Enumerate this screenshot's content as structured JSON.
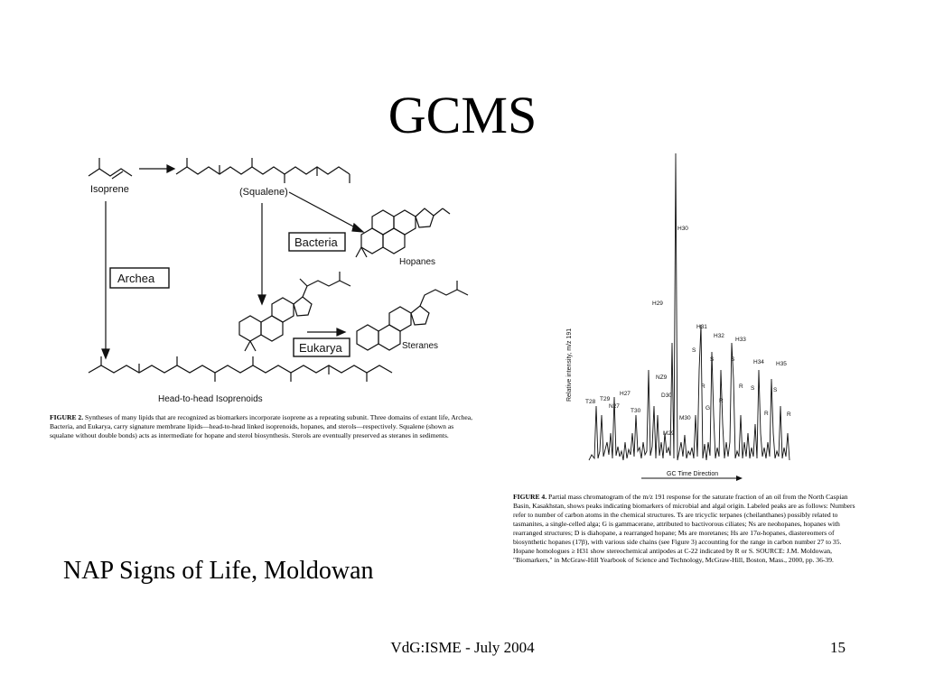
{
  "slide": {
    "title": "GCMS",
    "subtitle": "NAP Signs of Life, Moldowan",
    "footer_center": "VdG:ISME - July 2004",
    "page_number": "15"
  },
  "figure2": {
    "labels": {
      "isoprene": "Isoprene",
      "squalene": "(Squalene)",
      "bacteria": "Bacteria",
      "hopanes": "Hopanes",
      "archea": "Archea",
      "eukarya": "Eukarya",
      "steranes": "Steranes",
      "head_to_head": "Head-to-head Isoprenoids"
    },
    "caption_head": "FIGURE 2.",
    "caption": "Syntheses of many lipids that are recognized as biomarkers incorporate isoprene as a repeating subunit. Three domains of extant life, Archea, Bacteria, and Eukarya, carry signature membrane lipids—head-to-head linked isoprenoids, hopanes, and sterols—respectively. Squalene (shown as squalane without double bonds) acts as intermediate for hopane and sterol biosynthesis. Sterols are eventually preserved as steranes in sediments."
  },
  "figure4": {
    "y_axis_label": "Relative intensity, m/z 191",
    "x_axis_label": "GC Time Direction",
    "peak_labels": [
      "T28",
      "T29",
      "N27",
      "H27",
      "T30",
      "NZ9",
      "D30",
      "H29",
      "M29",
      "M30",
      "H30",
      "H31",
      "S",
      "R",
      "H32",
      "S",
      "R",
      "G",
      "H33",
      "S",
      "R",
      "H34",
      "S",
      "R",
      "H35",
      "S",
      "R"
    ],
    "caption_head": "FIGURE 4.",
    "caption": "Partial mass chromatogram of the m/z 191 response for the saturate fraction of an oil from the North Caspian Basin, Kasakhstan, shows peaks indicating biomarkers of microbial and algal origin. Labeled peaks are as follows: Numbers refer to number of carbon atoms in the chemical structures. Ts are tricyclic terpanes (cheilanthanes) possibly related to tasmanites, a single-celled alga; G is gammacerane, attributed to bactivorous ciliates; Ns are neohopanes, hopanes with rearranged structures; D is diahopane, a rearranged hopane; Ms are moretanes; Hs are 17α-hopanes, diastereomers of biosynthetic hopanes (17β), with various side chains (see Figure 3) accounting for the range in carbon number 27 to 35. Hopane homologues ≥ H31 show stereochemical antipodes at C-22 indicated by R or S. SOURCE: J.M. Moldowan, \"Biomarkers,\" in McGraw-Hill Yearbook of Science and Technology, McGraw-Hill, Boston, Mass., 2000, pp. 36-39."
  }
}
